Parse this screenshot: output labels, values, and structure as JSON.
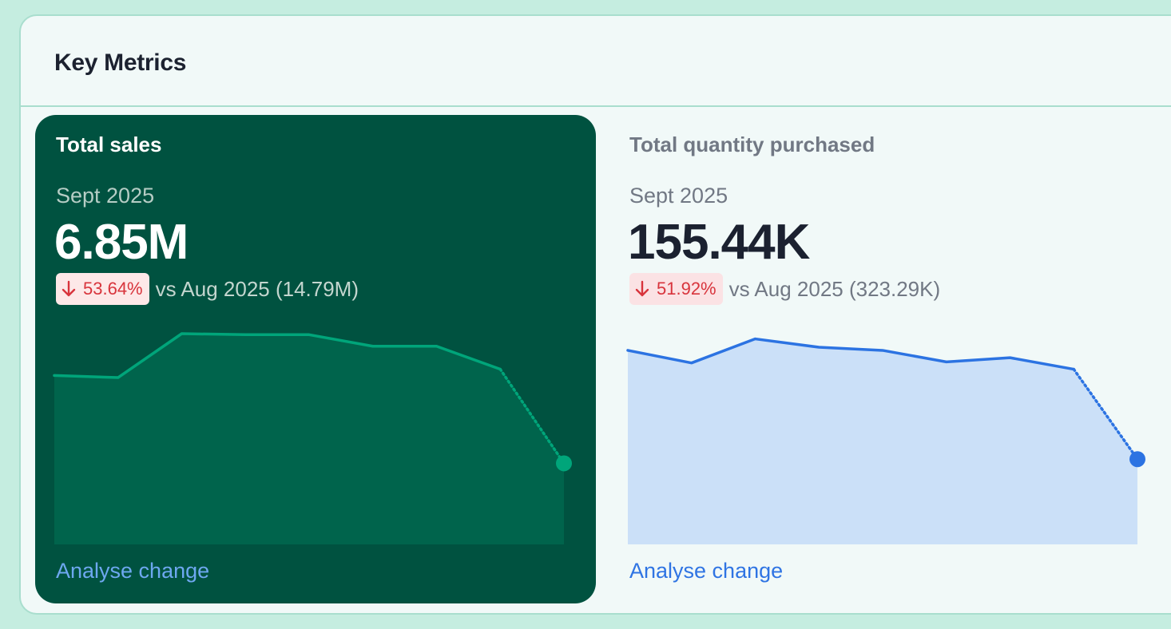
{
  "panel": {
    "title": "Key Metrics"
  },
  "cards": [
    {
      "title": "Total sales",
      "period": "Sept 2025",
      "value": "6.85M",
      "change": {
        "direction": "down",
        "percent": "53.64%",
        "compare_text": "vs Aug 2025 (14.79M)"
      },
      "link": "Analyse change",
      "selected": true,
      "colors": {
        "line": "#00a57a",
        "fill": "#00644c",
        "point": "#00a57a"
      },
      "sparkline": [
        0.8,
        0.79,
        1.0,
        0.995,
        0.995,
        0.94,
        0.94,
        0.83,
        0.38
      ]
    },
    {
      "title": "Total quantity purchased",
      "period": "Sept 2025",
      "value": "155.44K",
      "change": {
        "direction": "down",
        "percent": "51.92%",
        "compare_text": "vs Aug 2025 (323.29K)"
      },
      "link": "Analyse change",
      "selected": false,
      "colors": {
        "line": "#2c73e2",
        "fill": "#cbe0f8",
        "point": "#2c73e2"
      },
      "sparkline": [
        0.92,
        0.86,
        0.975,
        0.935,
        0.92,
        0.865,
        0.885,
        0.83,
        0.4
      ]
    }
  ]
}
